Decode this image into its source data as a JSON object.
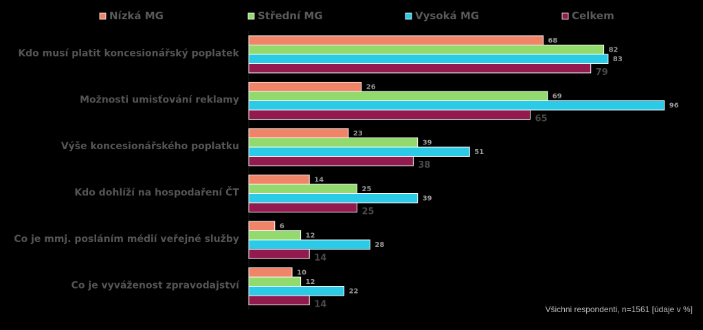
{
  "chart_data": {
    "type": "bar",
    "orientation": "horizontal",
    "categories": [
      "Kdo musí platit koncesionářský poplatek",
      "Možnosti umisťování reklamy",
      "Výše koncesionářského poplatku",
      "Kdo dohlíží na hospodaření ČT",
      "Co je mmj. posláním médií veřejné služby",
      "Co je vyváženost zpravodajství"
    ],
    "series": [
      {
        "name": "Nízká MG",
        "color": "#f08468",
        "values": [
          68,
          26,
          23,
          14,
          6,
          10
        ]
      },
      {
        "name": "Střední MG",
        "color": "#92d96e",
        "values": [
          82,
          69,
          39,
          25,
          12,
          12
        ]
      },
      {
        "name": "Vysoká MG",
        "color": "#2bcbe8",
        "values": [
          83,
          96,
          51,
          39,
          28,
          22
        ]
      },
      {
        "name": "Celkem",
        "color": "#931a4e",
        "values": [
          79,
          65,
          38,
          25,
          14,
          14
        ]
      }
    ],
    "xlim": [
      0,
      100
    ],
    "legend_position": "top",
    "grid": false
  },
  "footnote": "Všichni respondenti, n=1561 [údaje v %]"
}
